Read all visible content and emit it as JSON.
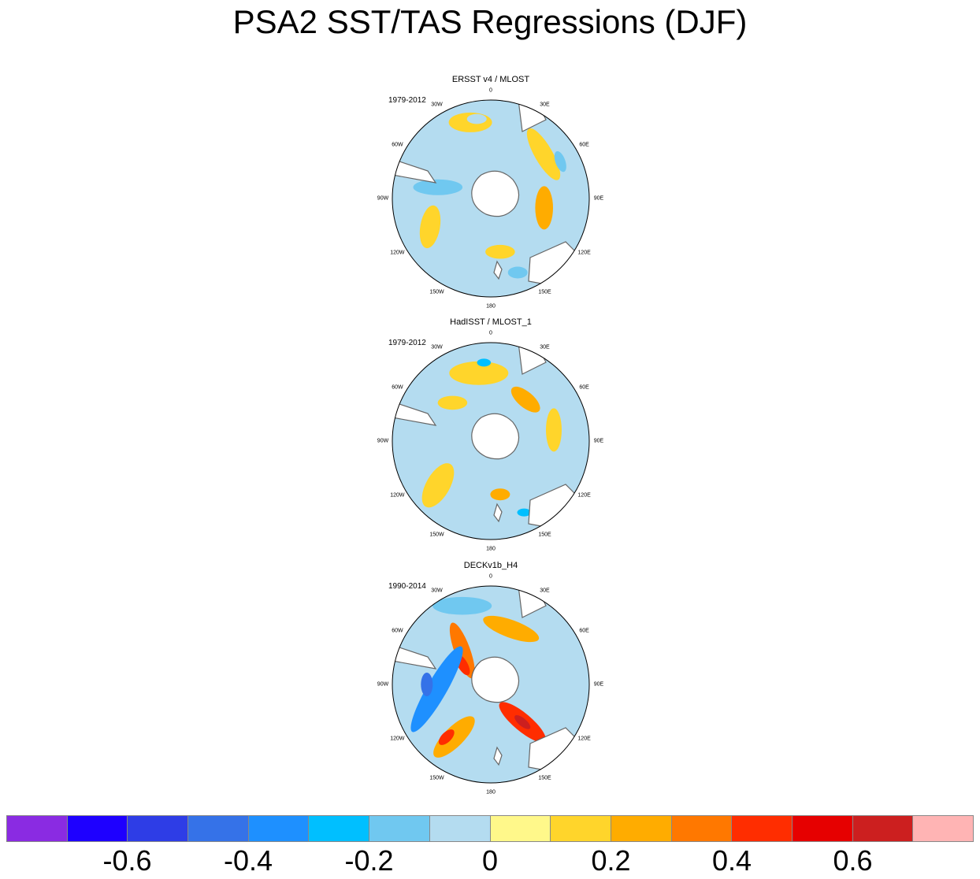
{
  "title": "PSA2 SST/TAS Regressions (DJF)",
  "chart_data": {
    "type": "heatmap",
    "projection": "south polar stereographic",
    "colorbar": {
      "levels": [
        -0.7,
        -0.6,
        -0.5,
        -0.4,
        -0.3,
        -0.2,
        -0.1,
        0,
        0.1,
        0.2,
        0.3,
        0.4,
        0.5,
        0.6,
        0.7
      ],
      "colors": [
        "#8a2be2",
        "#1e00ff",
        "#2e3de6",
        "#3572e8",
        "#1e90ff",
        "#00bfff",
        "#70c8f0",
        "#b4dcf0",
        "#fff88a",
        "#ffd52b",
        "#ffac00",
        "#ff7800",
        "#ff2d00",
        "#e60000",
        "#cc1f1f",
        "#ffb4b4"
      ],
      "tick_labels": [
        "-0.6",
        "-0.4",
        "-0.2",
        "0",
        "0.2",
        "0.4",
        "0.6"
      ],
      "tick_values": [
        -0.6,
        -0.4,
        -0.2,
        0,
        0.2,
        0.4,
        0.6
      ]
    },
    "lon_labels": [
      "0",
      "30E",
      "60E",
      "90E",
      "120E",
      "150E",
      "180",
      "150W",
      "120W",
      "90W",
      "60W",
      "30W"
    ],
    "lon_values": [
      0,
      30,
      60,
      90,
      120,
      150,
      180,
      -150,
      -120,
      -90,
      -60,
      -30
    ],
    "panels": [
      {
        "title": "ERSST v4 / MLOST",
        "period": "1979-2012",
        "background": "#b4dcf0",
        "features": [
          {
            "lon": -15,
            "r": 0.8,
            "rx": 0.22,
            "ry": 0.1,
            "angle": 0,
            "value": 0.1
          },
          {
            "lon": -10,
            "r": 0.82,
            "rx": 0.1,
            "ry": 0.05,
            "angle": 0,
            "value": -0.1
          },
          {
            "lon": 50,
            "r": 0.7,
            "rx": 0.3,
            "ry": 0.09,
            "angle": 60,
            "value": 0.15
          },
          {
            "lon": 62,
            "r": 0.8,
            "rx": 0.11,
            "ry": 0.05,
            "angle": 70,
            "value": -0.15
          },
          {
            "lon": 100,
            "r": 0.55,
            "rx": 0.22,
            "ry": 0.09,
            "angle": 90,
            "value": 0.25
          },
          {
            "lon": -115,
            "r": 0.68,
            "rx": 0.22,
            "ry": 0.1,
            "angle": 100,
            "value": 0.1
          },
          {
            "lon": -78,
            "r": 0.55,
            "rx": 0.25,
            "ry": 0.08,
            "angle": 0,
            "value": -0.15
          },
          {
            "lon": 160,
            "r": 0.8,
            "rx": 0.1,
            "ry": 0.06,
            "angle": 0,
            "value": -0.15
          },
          {
            "lon": 170,
            "r": 0.55,
            "rx": 0.15,
            "ry": 0.07,
            "angle": 0,
            "value": 0.1
          }
        ]
      },
      {
        "title": "HadISST / MLOST_1",
        "period": "1979-2012",
        "background": "#b4dcf0",
        "features": [
          {
            "lon": -10,
            "r": 0.7,
            "rx": 0.3,
            "ry": 0.12,
            "angle": 0,
            "value": 0.1
          },
          {
            "lon": -5,
            "r": 0.8,
            "rx": 0.07,
            "ry": 0.04,
            "angle": 0,
            "value": -0.25
          },
          {
            "lon": 40,
            "r": 0.55,
            "rx": 0.18,
            "ry": 0.08,
            "angle": 40,
            "value": 0.2
          },
          {
            "lon": 80,
            "r": 0.65,
            "rx": 0.22,
            "ry": 0.08,
            "angle": 90,
            "value": 0.1
          },
          {
            "lon": -130,
            "r": 0.7,
            "rx": 0.25,
            "ry": 0.12,
            "angle": 120,
            "value": 0.1
          },
          {
            "lon": 170,
            "r": 0.55,
            "rx": 0.1,
            "ry": 0.06,
            "angle": 0,
            "value": 0.2
          },
          {
            "lon": 155,
            "r": 0.8,
            "rx": 0.07,
            "ry": 0.04,
            "angle": 0,
            "value": -0.25
          },
          {
            "lon": -45,
            "r": 0.55,
            "rx": 0.15,
            "ry": 0.07,
            "angle": 0,
            "value": 0.1
          }
        ]
      },
      {
        "title": "DECKv1b_H4",
        "period": "1990-2014",
        "background": "#b4dcf0",
        "features": [
          {
            "lon": -20,
            "r": 0.85,
            "rx": 0.3,
            "ry": 0.09,
            "angle": 0,
            "value": -0.2
          },
          {
            "lon": -40,
            "r": 0.45,
            "rx": 0.3,
            "ry": 0.08,
            "angle": 70,
            "value": 0.3
          },
          {
            "lon": -55,
            "r": 0.35,
            "rx": 0.12,
            "ry": 0.05,
            "angle": 60,
            "value": 0.45
          },
          {
            "lon": 20,
            "r": 0.6,
            "rx": 0.3,
            "ry": 0.09,
            "angle": 20,
            "value": 0.2
          },
          {
            "lon": -95,
            "r": 0.55,
            "rx": 0.5,
            "ry": 0.1,
            "angle": 120,
            "value": -0.35
          },
          {
            "lon": -90,
            "r": 0.65,
            "rx": 0.12,
            "ry": 0.06,
            "angle": 90,
            "value": -0.5
          },
          {
            "lon": -145,
            "r": 0.65,
            "rx": 0.28,
            "ry": 0.1,
            "angle": 135,
            "value": 0.25
          },
          {
            "lon": -140,
            "r": 0.7,
            "rx": 0.1,
            "ry": 0.05,
            "angle": 135,
            "value": 0.4
          },
          {
            "lon": 140,
            "r": 0.5,
            "rx": 0.3,
            "ry": 0.09,
            "angle": 40,
            "value": 0.4
          },
          {
            "lon": 140,
            "r": 0.5,
            "rx": 0.1,
            "ry": 0.04,
            "angle": 40,
            "value": 0.6
          },
          {
            "lon": 85,
            "r": 0.7,
            "rx": 0.28,
            "ry": 0.08,
            "angle": 90,
            "value": -0.1
          }
        ]
      }
    ]
  }
}
